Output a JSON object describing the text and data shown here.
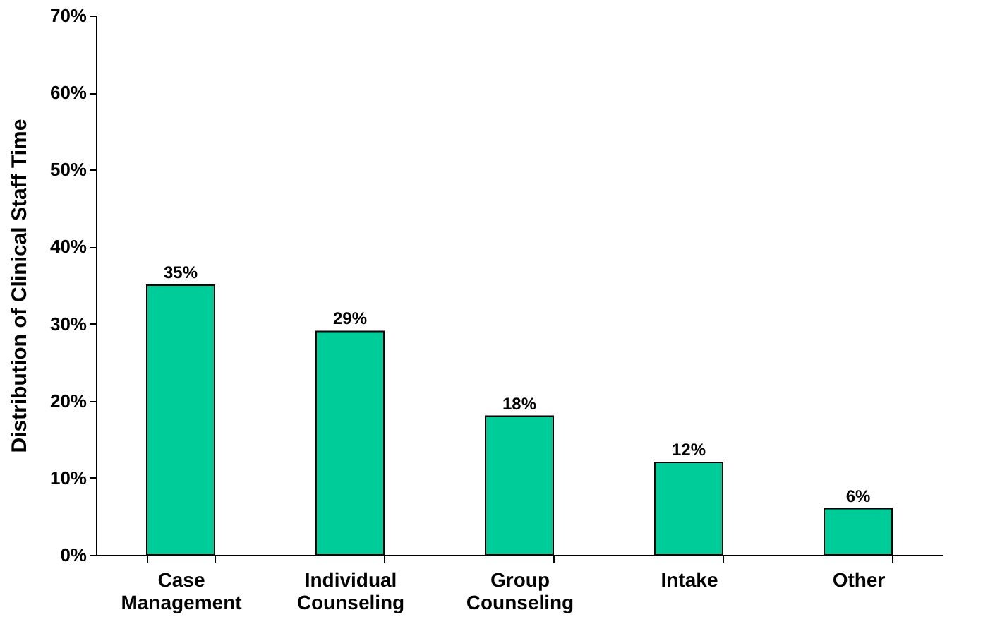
{
  "chart_data": {
    "type": "bar",
    "ylabel": "Distribution of Clinical Staff Time",
    "categories": [
      "Case Management",
      "Individual Counseling",
      "Group Counseling",
      "Intake",
      "Other"
    ],
    "values": [
      35,
      29,
      18,
      12,
      6
    ],
    "value_labels": [
      "35%",
      "29%",
      "18%",
      "12%",
      "6%"
    ],
    "color": "#00cc99",
    "ylim": [
      0,
      70
    ],
    "yticks": [
      {
        "value": 0,
        "label": "0%"
      },
      {
        "value": 10,
        "label": "10%"
      },
      {
        "value": 20,
        "label": "20%"
      },
      {
        "value": 30,
        "label": "30%"
      },
      {
        "value": 40,
        "label": "40%"
      },
      {
        "value": 50,
        "label": "50%"
      },
      {
        "value": 60,
        "label": "60%"
      },
      {
        "value": 70,
        "label": "70%"
      }
    ],
    "grid": false
  }
}
